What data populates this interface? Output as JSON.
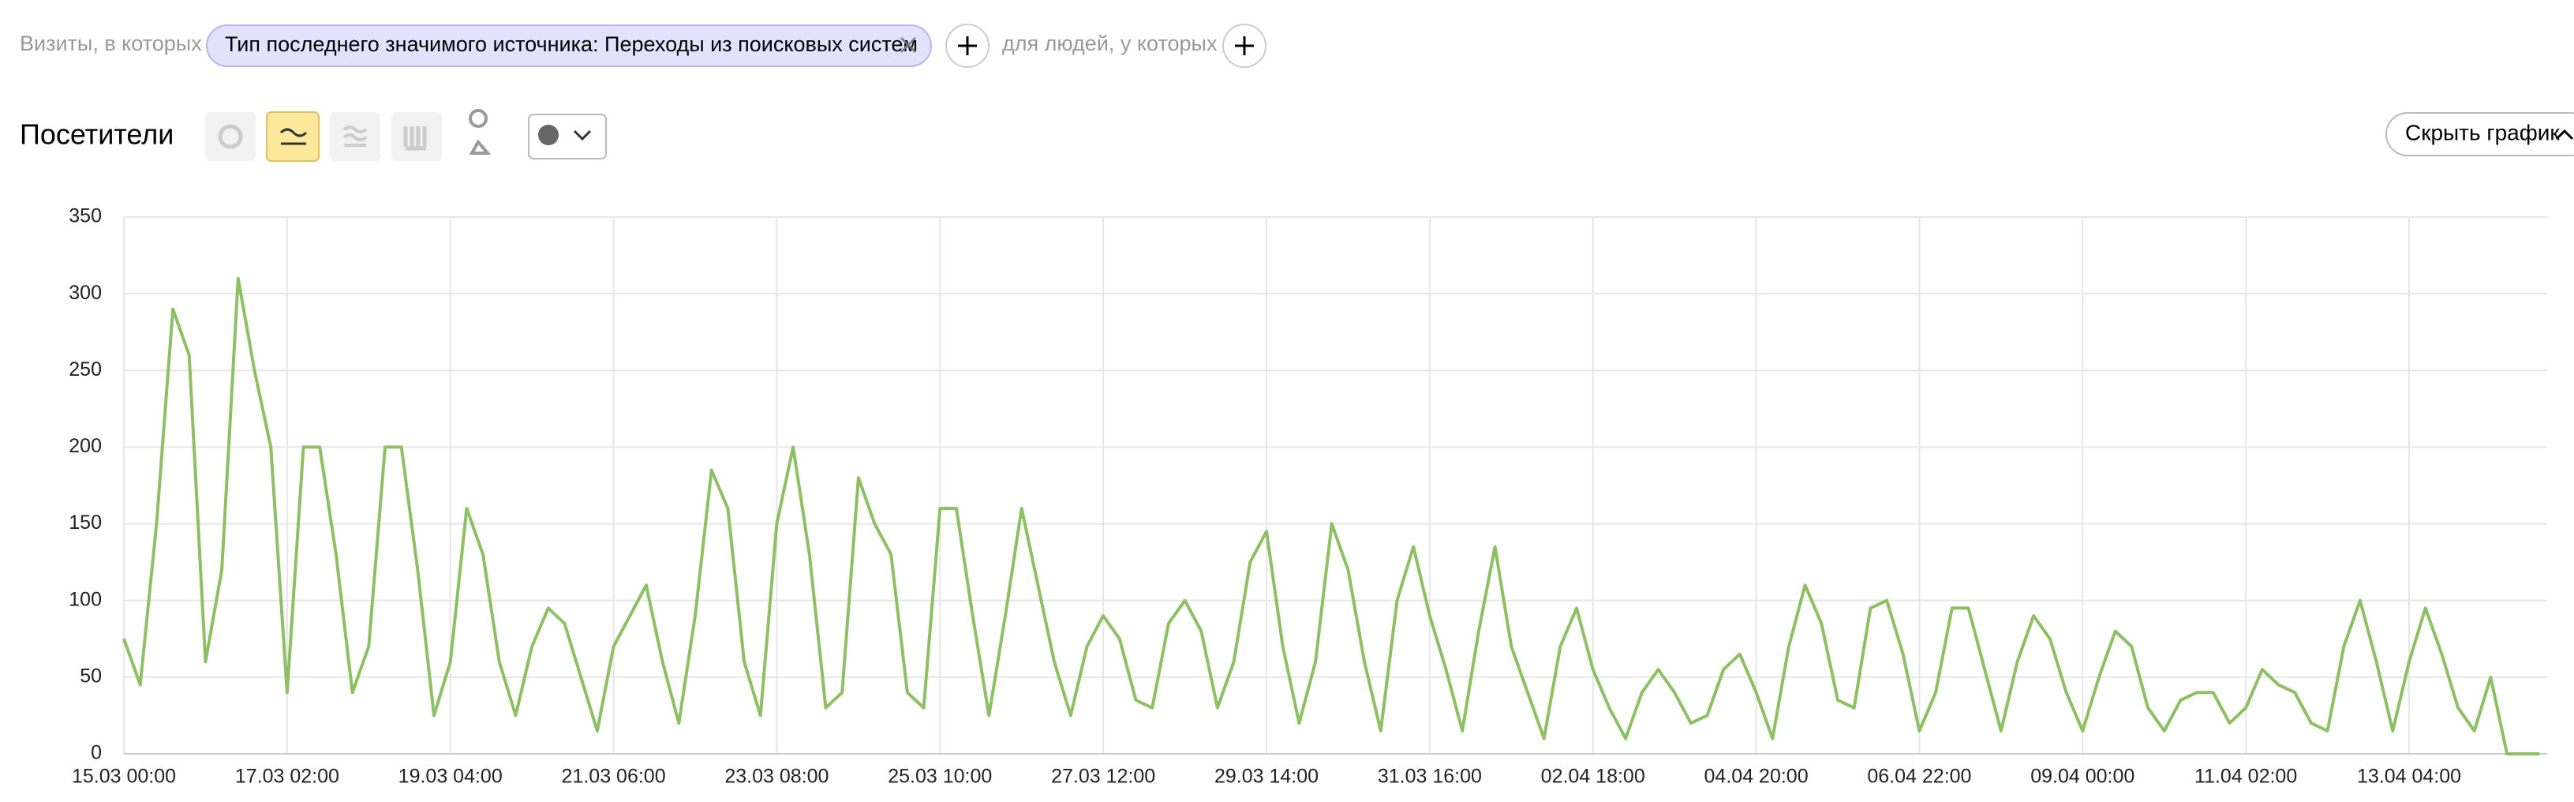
{
  "filters": {
    "prefix": "Визиты, в которых",
    "chip": "Тип последнего значимого источника: Переходы из поисковых систем",
    "middle": "для людей, у которых"
  },
  "header": {
    "title": "Посетители",
    "hide_button": "Скрыть график"
  },
  "chart_data": {
    "type": "line",
    "color": "#8cc063",
    "grid": true,
    "categories": [
      "15.03 00:00",
      null,
      null,
      null,
      null,
      null,
      null,
      null,
      null,
      null,
      "17.03 02:00",
      null,
      null,
      null,
      null,
      null,
      null,
      null,
      null,
      null,
      "19.03 04:00",
      null,
      null,
      null,
      null,
      null,
      null,
      null,
      null,
      null,
      "21.03 06:00",
      null,
      null,
      null,
      null,
      null,
      null,
      null,
      null,
      null,
      "23.03 08:00",
      null,
      null,
      null,
      null,
      null,
      null,
      null,
      null,
      null,
      "25.03 10:00",
      null,
      null,
      null,
      null,
      null,
      null,
      null,
      null,
      null,
      "27.03 12:00",
      null,
      null,
      null,
      null,
      null,
      null,
      null,
      null,
      null,
      "29.03 14:00",
      null,
      null,
      null,
      null,
      null,
      null,
      null,
      null,
      null,
      "31.03 16:00",
      null,
      null,
      null,
      null,
      null,
      null,
      null,
      null,
      null,
      "02.04 18:00",
      null,
      null,
      null,
      null,
      null,
      null,
      null,
      null,
      null,
      "04.04 20:00",
      null,
      null,
      null,
      null,
      null,
      null,
      null,
      null,
      null,
      "06.04 22:00",
      null,
      null,
      null,
      null,
      null,
      null,
      null,
      null,
      null,
      "09.04 00:00",
      null,
      null,
      null,
      null,
      null,
      null,
      null,
      null,
      null,
      "11.04 02:00",
      null,
      null,
      null,
      null,
      null,
      null,
      null,
      null,
      null,
      "13.04 04:00",
      null,
      null,
      null,
      null,
      null,
      null,
      null,
      null
    ],
    "values": [
      75,
      45,
      150,
      290,
      260,
      60,
      120,
      310,
      250,
      200,
      40,
      200,
      200,
      130,
      40,
      70,
      200,
      200,
      120,
      25,
      60,
      160,
      130,
      60,
      25,
      70,
      95,
      85,
      50,
      15,
      70,
      90,
      110,
      60,
      20,
      90,
      185,
      160,
      60,
      25,
      150,
      200,
      130,
      30,
      40,
      180,
      150,
      130,
      40,
      30,
      160,
      160,
      90,
      25,
      90,
      160,
      110,
      60,
      25,
      70,
      90,
      75,
      35,
      30,
      85,
      100,
      80,
      30,
      60,
      125,
      145,
      70,
      20,
      60,
      150,
      120,
      60,
      15,
      100,
      135,
      90,
      55,
      15,
      80,
      135,
      70,
      40,
      10,
      70,
      95,
      55,
      30,
      10,
      40,
      55,
      40,
      20,
      25,
      55,
      65,
      40,
      10,
      70,
      110,
      85,
      35,
      30,
      95,
      100,
      65,
      15,
      40,
      95,
      95,
      55,
      15,
      60,
      90,
      75,
      40,
      15,
      50,
      80,
      70,
      30,
      15,
      35,
      40,
      40,
      20,
      30,
      55,
      45,
      40,
      20,
      15,
      70,
      100,
      60,
      15,
      60,
      95,
      65,
      30,
      15,
      50,
      0,
      0,
      0
    ],
    "ylim": [
      0,
      350
    ],
    "yticks": [
      0,
      50,
      100,
      150,
      200,
      250,
      300,
      350
    ]
  }
}
